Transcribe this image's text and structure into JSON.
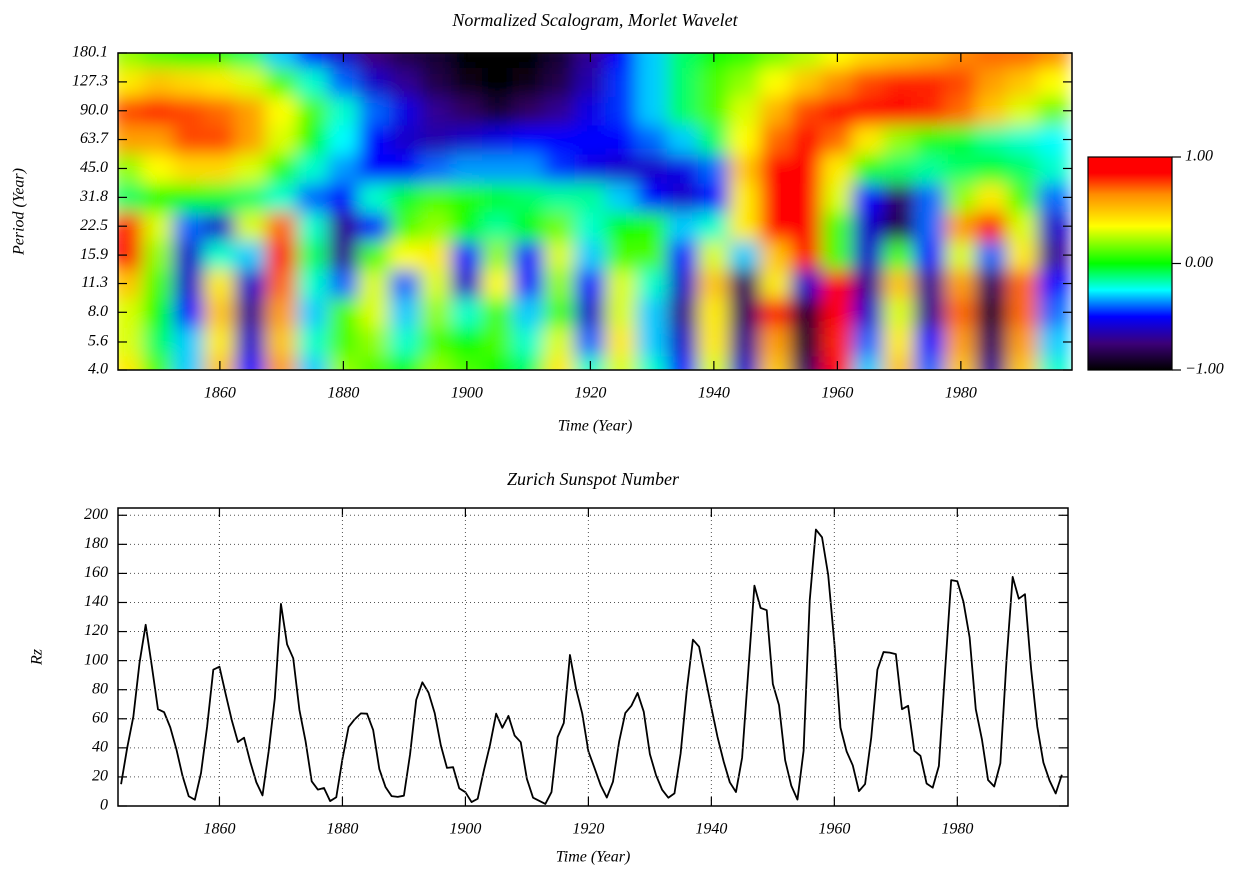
{
  "chart_data": [
    {
      "type": "heatmap",
      "title": "Normalized Scalogram, Morlet Wavelet",
      "xlabel": "Time (Year)",
      "ylabel": "Period (Year)",
      "x": [
        1845,
        1850,
        1855,
        1860,
        1865,
        1870,
        1875,
        1880,
        1885,
        1890,
        1895,
        1900,
        1905,
        1910,
        1915,
        1920,
        1925,
        1930,
        1935,
        1940,
        1945,
        1950,
        1955,
        1960,
        1965,
        1970,
        1975,
        1980,
        1985,
        1990,
        1995
      ],
      "y": [
        4.0,
        5.6,
        8.0,
        11.3,
        15.9,
        22.5,
        31.8,
        45.0,
        63.7,
        90.0,
        127.3,
        180.1
      ],
      "z": [
        [
          0.4,
          0.1,
          -0.3,
          0.5,
          -0.5,
          0.6,
          -0.3,
          0.2,
          0.1,
          0.0,
          0.2,
          0.1,
          0.0,
          -0.1,
          0.4,
          -0.2,
          0.3,
          -0.2,
          -0.5,
          0.3,
          -0.6,
          0.5,
          -0.8,
          0.9,
          -0.3,
          0.5,
          -0.4,
          0.5,
          -0.7,
          0.5,
          -0.2
        ],
        [
          0.3,
          -0.1,
          -0.3,
          0.4,
          -0.6,
          0.5,
          -0.2,
          0.1,
          0.2,
          -0.2,
          0.1,
          0.0,
          0.1,
          -0.2,
          0.3,
          -0.4,
          0.4,
          -0.3,
          -0.6,
          0.4,
          -0.7,
          0.6,
          -0.9,
          0.8,
          -0.4,
          0.4,
          -0.5,
          0.6,
          -0.8,
          0.6,
          -0.3
        ],
        [
          0.3,
          0.0,
          -0.5,
          0.5,
          -0.7,
          0.6,
          -0.3,
          0.1,
          0.3,
          -0.3,
          0.2,
          -0.2,
          0.1,
          -0.3,
          0.1,
          -0.6,
          0.3,
          -0.3,
          -0.7,
          0.4,
          -0.8,
          0.8,
          -0.9,
          0.9,
          -0.6,
          0.3,
          -0.7,
          0.7,
          -0.9,
          0.7,
          -0.4
        ],
        [
          0.5,
          0.1,
          -0.6,
          0.4,
          -0.6,
          0.7,
          -0.2,
          -0.4,
          0.3,
          -0.4,
          0.3,
          -0.6,
          0.35,
          -0.5,
          0.2,
          -0.5,
          0.3,
          -0.2,
          -0.6,
          0.5,
          -0.8,
          0.4,
          -0.6,
          0.9,
          -0.7,
          0.5,
          -0.7,
          0.6,
          -0.8,
          0.7,
          -0.5
        ],
        [
          0.85,
          0.2,
          -0.6,
          -0.2,
          -0.3,
          0.8,
          -0.1,
          -0.7,
          0.1,
          0.35,
          0.4,
          -0.5,
          0.2,
          -0.5,
          0.3,
          -0.3,
          0.1,
          0.1,
          -0.5,
          0.3,
          -0.3,
          0.5,
          0.9,
          0.1,
          -0.6,
          0.1,
          -0.5,
          0.3,
          -0.4,
          0.4,
          -0.7
        ],
        [
          0.8,
          0.3,
          -0.4,
          -0.6,
          0.3,
          0.7,
          -0.2,
          -0.7,
          -0.5,
          0.1,
          0.2,
          0.0,
          -0.15,
          0.0,
          0.15,
          -0.2,
          0.0,
          0.05,
          -0.3,
          -0.2,
          0.4,
          0.9,
          0.95,
          0.1,
          -0.6,
          -0.85,
          -0.4,
          0.6,
          0.85,
          0.3,
          -0.6
        ],
        [
          -0.1,
          0.0,
          0.0,
          -0.05,
          -0.1,
          -0.2,
          -0.4,
          -0.5,
          -0.2,
          -0.05,
          0.1,
          0.05,
          -0.05,
          -0.1,
          -0.15,
          -0.15,
          -0.3,
          -0.5,
          -0.6,
          -0.5,
          0.4,
          0.9,
          0.95,
          0.3,
          -0.5,
          -0.8,
          -0.4,
          0.2,
          0.4,
          0.1,
          -0.4
        ],
        [
          0.2,
          0.35,
          0.45,
          0.45,
          0.3,
          0.05,
          -0.2,
          -0.35,
          -0.5,
          -0.5,
          -0.4,
          -0.35,
          -0.35,
          -0.35,
          -0.45,
          -0.55,
          -0.6,
          -0.6,
          -0.55,
          -0.4,
          0.5,
          0.85,
          0.95,
          0.4,
          0.05,
          -0.1,
          -0.15,
          -0.1,
          -0.05,
          -0.1,
          -0.2
        ],
        [
          0.6,
          0.6,
          0.75,
          0.75,
          0.6,
          0.3,
          0.0,
          -0.25,
          -0.5,
          -0.6,
          -0.65,
          -0.6,
          -0.55,
          -0.5,
          -0.5,
          -0.5,
          -0.5,
          -0.4,
          -0.3,
          -0.1,
          0.35,
          0.7,
          0.85,
          0.7,
          0.4,
          0.2,
          0.05,
          -0.05,
          -0.15,
          -0.2,
          -0.25
        ],
        [
          0.75,
          0.8,
          0.75,
          0.7,
          0.6,
          0.35,
          0.1,
          -0.2,
          -0.4,
          -0.55,
          -0.7,
          -0.8,
          -0.9,
          -0.8,
          -0.7,
          -0.55,
          -0.45,
          -0.3,
          -0.1,
          0.1,
          0.3,
          0.55,
          0.75,
          0.85,
          0.85,
          0.85,
          0.8,
          0.7,
          0.5,
          0.3,
          0.15
        ],
        [
          0.4,
          0.5,
          0.45,
          0.4,
          0.3,
          0.1,
          -0.2,
          -0.4,
          -0.6,
          -0.7,
          -0.85,
          -0.95,
          -1.0,
          -0.95,
          -0.85,
          -0.65,
          -0.45,
          -0.3,
          -0.1,
          0.1,
          0.2,
          0.35,
          0.5,
          0.65,
          0.75,
          0.8,
          0.8,
          0.75,
          0.6,
          0.5,
          0.35
        ],
        [
          0.2,
          0.1,
          0.0,
          0.0,
          -0.1,
          -0.3,
          -0.5,
          -0.6,
          -0.75,
          -0.85,
          -0.9,
          -1.0,
          -1.0,
          -1.0,
          -0.9,
          -0.7,
          -0.5,
          -0.3,
          -0.1,
          0.0,
          0.05,
          0.15,
          0.25,
          0.35,
          0.45,
          0.5,
          0.55,
          0.65,
          0.7,
          0.7,
          0.65
        ]
      ],
      "xlim": [
        1843.5,
        1998
      ],
      "xticks": [
        1860,
        1880,
        1900,
        1920,
        1940,
        1960,
        1980
      ],
      "ylim": [
        4.0,
        180.1
      ],
      "log_y": true,
      "yticks": [
        {
          "value": 4.0,
          "label": "4.0"
        },
        5.6,
        {
          "value": 8.0,
          "label": "8.0"
        },
        11.3,
        15.9,
        22.5,
        31.8,
        {
          "value": 45.0,
          "label": "45.0"
        },
        63.7,
        {
          "value": 90.0,
          "label": "90.0"
        },
        127.3,
        180.1
      ],
      "zlim": [
        -1,
        1
      ],
      "colorbar_ticks": [
        {
          "value": 1,
          "label": "1.00"
        },
        {
          "value": 0,
          "label": "0.00"
        },
        {
          "value": -1,
          "label": "−1.00"
        }
      ],
      "colormap": [
        [
          -1,
          "#000000"
        ],
        [
          -0.75,
          "#3c0078"
        ],
        [
          -0.5,
          "#0000ff"
        ],
        [
          -0.25,
          "#00ffff"
        ],
        [
          0,
          "#00ff00"
        ],
        [
          0.35,
          "#ffff00"
        ],
        [
          0.65,
          "#ff8c00"
        ],
        [
          0.85,
          "#ff0000"
        ],
        [
          1,
          "#ff0000"
        ]
      ]
    },
    {
      "type": "line",
      "title": "Zurich Sunspot Number",
      "xlabel": "Time (Year)",
      "ylabel": "Rz",
      "color": "#000000",
      "x": [
        1844,
        1845,
        1846,
        1847,
        1848,
        1849,
        1850,
        1851,
        1852,
        1853,
        1854,
        1855,
        1856,
        1857,
        1858,
        1859,
        1860,
        1861,
        1862,
        1863,
        1864,
        1865,
        1866,
        1867,
        1868,
        1869,
        1870,
        1871,
        1872,
        1873,
        1874,
        1875,
        1876,
        1877,
        1878,
        1879,
        1880,
        1881,
        1882,
        1883,
        1884,
        1885,
        1886,
        1887,
        1888,
        1889,
        1890,
        1891,
        1892,
        1893,
        1894,
        1895,
        1896,
        1897,
        1898,
        1899,
        1900,
        1901,
        1902,
        1903,
        1904,
        1905,
        1906,
        1907,
        1908,
        1909,
        1910,
        1911,
        1912,
        1913,
        1914,
        1915,
        1916,
        1917,
        1918,
        1919,
        1920,
        1921,
        1922,
        1923,
        1924,
        1925,
        1926,
        1927,
        1928,
        1929,
        1930,
        1931,
        1932,
        1933,
        1934,
        1935,
        1936,
        1937,
        1938,
        1939,
        1940,
        1941,
        1942,
        1943,
        1944,
        1945,
        1946,
        1947,
        1948,
        1949,
        1950,
        1951,
        1952,
        1953,
        1954,
        1955,
        1956,
        1957,
        1958,
        1959,
        1960,
        1961,
        1962,
        1963,
        1964,
        1965,
        1966,
        1967,
        1968,
        1969,
        1970,
        1971,
        1972,
        1973,
        1974,
        1975,
        1976,
        1977,
        1978,
        1979,
        1980,
        1981,
        1982,
        1983,
        1984,
        1985,
        1986,
        1987,
        1988,
        1989,
        1990,
        1991,
        1992,
        1993,
        1994,
        1995,
        1996,
        1997
      ],
      "values": [
        15.0,
        40.1,
        61.5,
        98.5,
        124.7,
        96.3,
        66.6,
        64.5,
        54.1,
        39.0,
        20.6,
        6.7,
        4.3,
        22.7,
        54.8,
        93.8,
        95.8,
        77.2,
        59.1,
        44.0,
        47.0,
        30.5,
        16.3,
        7.3,
        37.6,
        74.0,
        139.0,
        111.2,
        101.6,
        66.2,
        44.7,
        17.0,
        11.3,
        12.4,
        3.4,
        6.0,
        32.3,
        54.3,
        59.7,
        63.7,
        63.5,
        52.2,
        25.4,
        13.1,
        6.8,
        6.3,
        7.1,
        35.6,
        73.0,
        85.1,
        78.0,
        64.0,
        41.8,
        26.2,
        26.7,
        12.1,
        9.5,
        2.7,
        5.0,
        24.4,
        42.0,
        63.5,
        53.8,
        62.0,
        48.5,
        43.9,
        18.6,
        5.7,
        3.6,
        1.4,
        9.6,
        47.4,
        57.1,
        103.9,
        80.6,
        63.6,
        37.6,
        26.1,
        14.2,
        5.8,
        16.7,
        44.3,
        63.9,
        69.0,
        77.8,
        64.9,
        35.7,
        21.2,
        11.1,
        5.7,
        8.7,
        36.1,
        79.7,
        114.4,
        109.6,
        88.8,
        67.8,
        47.5,
        30.6,
        16.3,
        9.6,
        33.2,
        92.6,
        151.6,
        136.3,
        134.7,
        83.9,
        69.4,
        31.5,
        13.9,
        4.4,
        38.0,
        141.7,
        190.2,
        184.8,
        159.0,
        112.3,
        53.9,
        37.5,
        27.9,
        10.2,
        15.1,
        47.0,
        93.8,
        105.9,
        105.5,
        104.5,
        66.6,
        68.9,
        38.0,
        34.5,
        15.5,
        12.6,
        27.5,
        92.5,
        155.4,
        154.6,
        140.4,
        115.9,
        66.6,
        45.9,
        17.9,
        13.4,
        29.4,
        100.2,
        157.6,
        142.6,
        145.7,
        94.3,
        54.6,
        29.9,
        17.5,
        8.6,
        21.5
      ],
      "xlim": [
        1843.5,
        1998
      ],
      "xticks": [
        1860,
        1880,
        1900,
        1920,
        1940,
        1960,
        1980
      ],
      "ylim": [
        0,
        205
      ],
      "yticks": [
        0,
        20,
        40,
        60,
        80,
        100,
        120,
        140,
        160,
        180,
        200
      ],
      "grid": true
    }
  ]
}
